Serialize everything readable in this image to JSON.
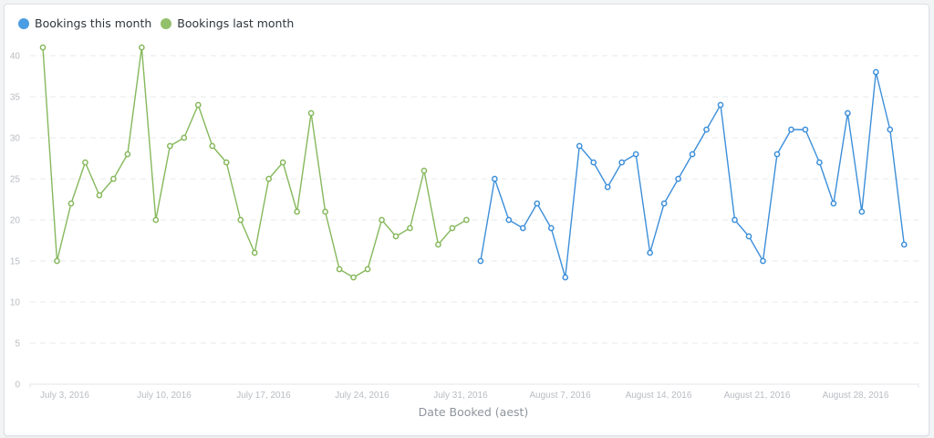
{
  "legend": {
    "items": [
      {
        "label": "Bookings this month",
        "color": "#4a9de3"
      },
      {
        "label": "Bookings last month",
        "color": "#93c06b"
      }
    ]
  },
  "axis": {
    "x_title": "Date Booked (aest)",
    "x_ticks": [
      "July 3, 2016",
      "July 10, 2016",
      "July 17, 2016",
      "July 24, 2016",
      "July 31, 2016",
      "August 7, 2016",
      "August 14, 2016",
      "August 21, 2016",
      "August 28, 2016"
    ],
    "y_ticks": [
      0,
      5,
      10,
      15,
      20,
      25,
      30,
      35,
      40
    ]
  },
  "colors": {
    "this_month": "#3d8fd9",
    "last_month": "#86b85c",
    "grid": "#e6e8eb",
    "tick_text": "#b8bcc2"
  },
  "chart_data": {
    "type": "line",
    "title": "",
    "xlabel": "Date Booked (aest)",
    "ylabel": "",
    "ylim": [
      0,
      40
    ],
    "grid": true,
    "legend_position": "top-left",
    "x_tick_labels": [
      "July 3, 2016",
      "July 10, 2016",
      "July 17, 2016",
      "July 24, 2016",
      "July 31, 2016",
      "August 7, 2016",
      "August 14, 2016",
      "August 21, 2016",
      "August 28, 2016"
    ],
    "series": [
      {
        "name": "Bookings last month",
        "color": "#86b85c",
        "x_range": "July 1, 2016 – July 31, 2016",
        "values": [
          41,
          15,
          22,
          27,
          23,
          25,
          28,
          41,
          20,
          29,
          30,
          34,
          29,
          27,
          20,
          16,
          25,
          27,
          21,
          33,
          21,
          14,
          13,
          14,
          20,
          18,
          19,
          26,
          17,
          19,
          20
        ]
      },
      {
        "name": "Bookings this month",
        "color": "#3d8fd9",
        "x_range": "August 1, 2016 – August 31, 2016",
        "values": [
          15,
          25,
          20,
          19,
          22,
          19,
          13,
          29,
          27,
          24,
          27,
          28,
          16,
          22,
          25,
          28,
          31,
          34,
          20,
          18,
          15,
          28,
          31,
          31,
          27,
          22,
          33,
          21,
          38,
          31,
          17
        ]
      }
    ]
  }
}
